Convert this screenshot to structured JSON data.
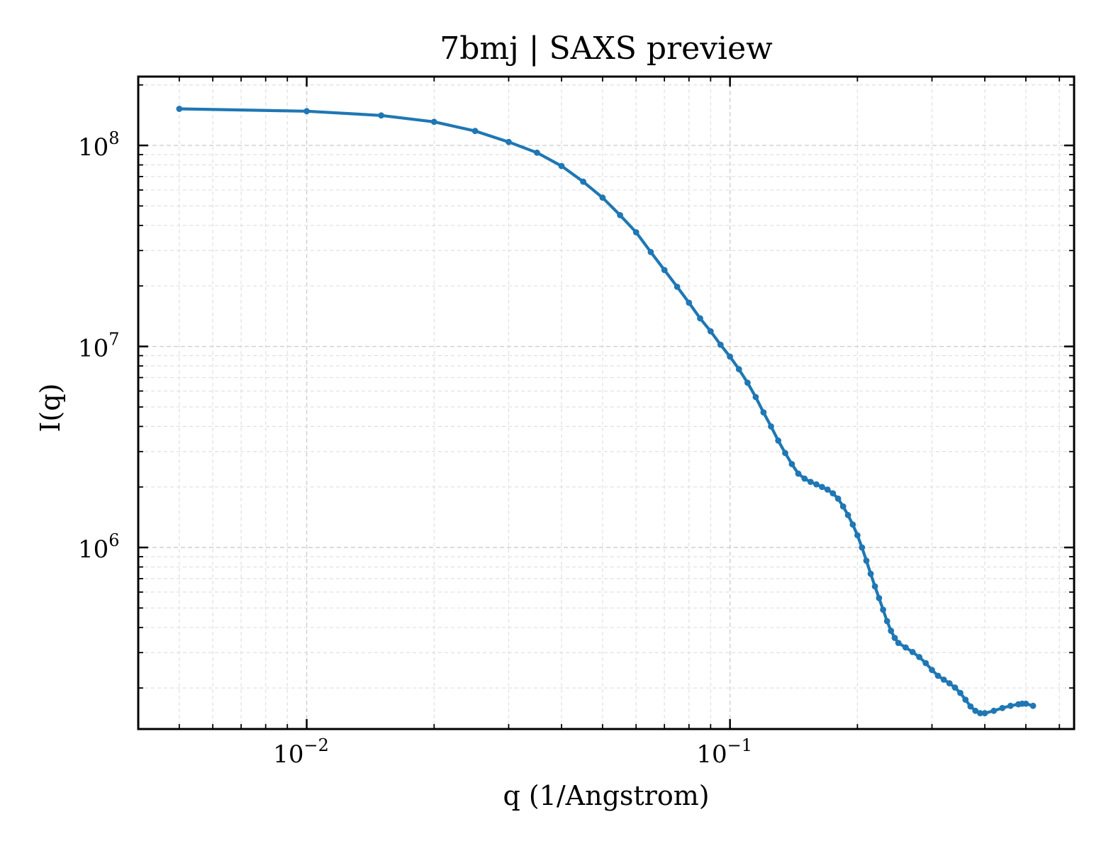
{
  "chart_data": {
    "type": "line",
    "title": "7bmj | SAXS preview",
    "xlabel": "q (1/Angstrom)",
    "ylabel": "I(q)",
    "xscale": "log",
    "yscale": "log",
    "xlim": [
      0.004,
      0.65
    ],
    "ylim": [
      125000,
      220000000
    ],
    "grid": true,
    "x_ticks": [
      {
        "base": "10",
        "exp": "−2",
        "value": 0.01
      },
      {
        "base": "10",
        "exp": "−1",
        "value": 0.1
      }
    ],
    "y_ticks": [
      {
        "base": "10",
        "exp": "6",
        "value": 1000000
      },
      {
        "base": "10",
        "exp": "7",
        "value": 10000000
      },
      {
        "base": "10",
        "exp": "8",
        "value": 100000000
      }
    ],
    "line_color": "#1f77b4",
    "series": [
      {
        "marker": "circle",
        "points": [
          [
            0.005,
            152000000
          ],
          [
            0.01,
            148000000
          ],
          [
            0.015,
            141000000
          ],
          [
            0.02,
            131000000
          ],
          [
            0.025,
            118000000
          ],
          [
            0.03,
            104000000
          ],
          [
            0.035,
            92000000
          ],
          [
            0.04,
            79000000
          ],
          [
            0.045,
            66000000
          ],
          [
            0.05,
            55000000
          ],
          [
            0.055,
            45000000
          ],
          [
            0.06,
            37000000
          ],
          [
            0.065,
            29500000
          ],
          [
            0.07,
            24000000
          ],
          [
            0.075,
            19800000
          ],
          [
            0.08,
            16500000
          ],
          [
            0.085,
            13800000
          ],
          [
            0.09,
            11900000
          ],
          [
            0.095,
            10200000
          ],
          [
            0.1,
            8900000
          ],
          [
            0.105,
            7700000
          ],
          [
            0.11,
            6600000
          ],
          [
            0.115,
            5600000
          ],
          [
            0.12,
            4700000
          ],
          [
            0.125,
            4000000
          ],
          [
            0.13,
            3400000
          ],
          [
            0.135,
            2950000
          ],
          [
            0.14,
            2600000
          ],
          [
            0.145,
            2330000
          ],
          [
            0.15,
            2200000
          ],
          [
            0.155,
            2120000
          ],
          [
            0.16,
            2060000
          ],
          [
            0.165,
            2000000
          ],
          [
            0.17,
            1940000
          ],
          [
            0.175,
            1860000
          ],
          [
            0.18,
            1750000
          ],
          [
            0.185,
            1600000
          ],
          [
            0.19,
            1450000
          ],
          [
            0.195,
            1300000
          ],
          [
            0.2,
            1150000
          ],
          [
            0.205,
            1000000
          ],
          [
            0.21,
            860000
          ],
          [
            0.215,
            740000
          ],
          [
            0.22,
            640000
          ],
          [
            0.225,
            560000
          ],
          [
            0.23,
            490000
          ],
          [
            0.235,
            430000
          ],
          [
            0.24,
            385000
          ],
          [
            0.245,
            355000
          ],
          [
            0.25,
            335000
          ],
          [
            0.26,
            318000
          ],
          [
            0.27,
            302000
          ],
          [
            0.28,
            285000
          ],
          [
            0.29,
            266000
          ],
          [
            0.3,
            246000
          ],
          [
            0.31,
            230000
          ],
          [
            0.32,
            220000
          ],
          [
            0.33,
            211000
          ],
          [
            0.34,
            201000
          ],
          [
            0.35,
            189000
          ],
          [
            0.36,
            175000
          ],
          [
            0.37,
            162000
          ],
          [
            0.38,
            154000
          ],
          [
            0.39,
            150000
          ],
          [
            0.4,
            150000
          ],
          [
            0.42,
            154000
          ],
          [
            0.44,
            159000
          ],
          [
            0.46,
            163000
          ],
          [
            0.48,
            166000
          ],
          [
            0.49,
            167000
          ],
          [
            0.5,
            167000
          ],
          [
            0.52,
            163000
          ]
        ]
      }
    ]
  }
}
